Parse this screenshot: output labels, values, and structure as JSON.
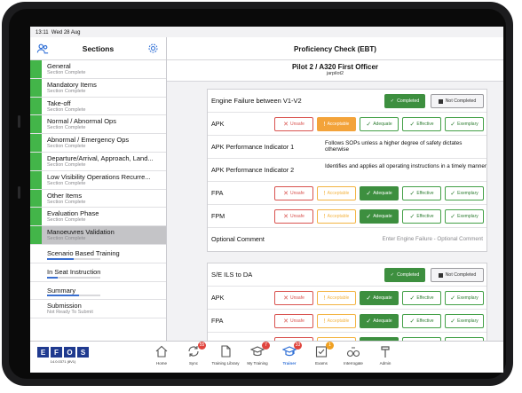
{
  "status_bar": {
    "time": "13:11",
    "date": "Wed 28 Aug"
  },
  "sidebar": {
    "title": "Sections",
    "items": [
      {
        "name": "General",
        "sub": "Section Complete"
      },
      {
        "name": "Mandatory Items",
        "sub": "Section Complete"
      },
      {
        "name": "Take-off",
        "sub": "Section Complete"
      },
      {
        "name": "Normal / Abnormal Ops",
        "sub": "Section Complete"
      },
      {
        "name": "Abnormal / Emergency Ops",
        "sub": "Section Complete"
      },
      {
        "name": "Departure/Arrival, Approach, Land...",
        "sub": "Section Complete"
      },
      {
        "name": "Low Visibility Operations Recurre...",
        "sub": "Section Complete"
      },
      {
        "name": "Other Items",
        "sub": "Section Complete"
      },
      {
        "name": "Evaluation Phase",
        "sub": "Section Complete"
      },
      {
        "name": "Manoeuvres Validation",
        "sub": "Section Complete"
      }
    ],
    "plain_items": [
      {
        "name": "Scenario Based Training",
        "progress": 0.5
      },
      {
        "name": "In Seat Instruction",
        "progress": 0.2
      },
      {
        "name": "Summary",
        "progress": 0.6
      }
    ],
    "submission": {
      "name": "Submission",
      "sub": "Not Ready To Submit"
    }
  },
  "header": {
    "title": "Proficiency Check (EBT)"
  },
  "pilot": {
    "name": "Pilot 2 / A320 First Officer",
    "username": "jarpilot2"
  },
  "grades": {
    "unsafe": "Unsafe",
    "acceptable": "Acceptable",
    "adequate": "Adequate",
    "effective": "Effective",
    "exemplary": "Exemplary"
  },
  "status_labels": {
    "completed": "Completed",
    "not_completed": "Not Completed"
  },
  "sections": [
    {
      "title": "Engine Failure between V1-V2",
      "rows": [
        {
          "label": "APK",
          "type": "grade",
          "selected": "acceptable"
        },
        {
          "label": "APK Performance Indicator 1",
          "type": "desc",
          "text": "Follows SOPs unless a higher degree of safety dictates otherwise"
        },
        {
          "label": "APK Performance Indicator 2",
          "type": "desc",
          "text": "Identifies and applies all operating instructions in a timely manner"
        },
        {
          "label": "FPA",
          "type": "grade",
          "selected": "adequate"
        },
        {
          "label": "FPM",
          "type": "grade",
          "selected": "adequate"
        },
        {
          "label": "Optional Comment",
          "type": "comment",
          "placeholder": "Enter Engine Failure - Optional Comment"
        }
      ]
    },
    {
      "title": "S/E ILS to DA",
      "rows": [
        {
          "label": "APK",
          "type": "grade",
          "selected": "adequate"
        },
        {
          "label": "FPA",
          "type": "grade",
          "selected": "adequate"
        },
        {
          "label": "FPM",
          "type": "grade",
          "selected": "adequate"
        }
      ]
    }
  ],
  "tabbar": {
    "logo_letters": [
      "E",
      "F",
      "O",
      "S"
    ],
    "logo_sub": "14.0.0371 (8V1)",
    "tabs": [
      {
        "label": "Home",
        "icon": "home-icon"
      },
      {
        "label": "Sync",
        "icon": "sync-icon",
        "badge": "55"
      },
      {
        "label": "Training Library",
        "icon": "library-icon"
      },
      {
        "label": "My Training",
        "icon": "graduation-cap-icon",
        "badge": "7"
      },
      {
        "label": "Trainer",
        "icon": "trainer-icon",
        "badge": "33",
        "active": true
      },
      {
        "label": "Exams",
        "icon": "exam-icon",
        "badge": "1"
      },
      {
        "label": "Interrogate",
        "icon": "binoculars-icon"
      },
      {
        "label": "Admin",
        "icon": "hammer-icon"
      }
    ]
  },
  "colors": {
    "accent": "#2f6fd6",
    "complete": "#43b549",
    "acceptable": "#f3a33a",
    "unsafe": "#d9534f",
    "adequate": "#3d8f3f"
  }
}
